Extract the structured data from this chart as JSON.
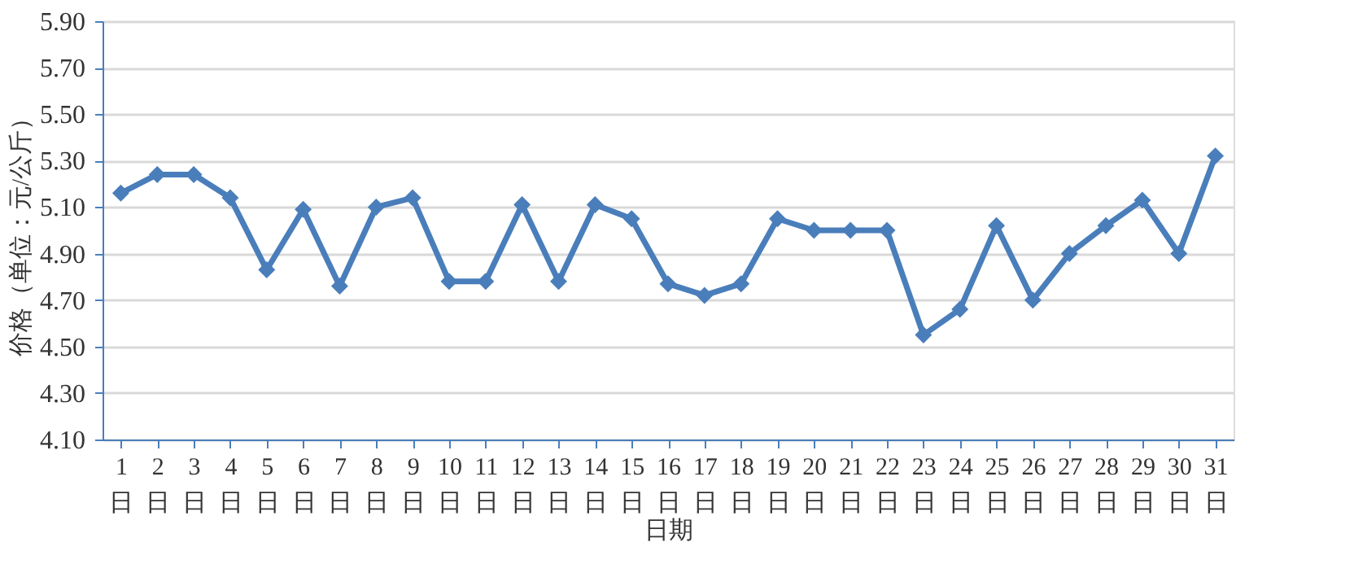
{
  "chart_data": {
    "type": "line",
    "xlabel": "日期",
    "ylabel": "价格（单位：元/公斤）",
    "categories": [
      "1日",
      "2日",
      "3日",
      "4日",
      "5日",
      "6日",
      "7日",
      "8日",
      "9日",
      "10日",
      "11日",
      "12日",
      "13日",
      "14日",
      "15日",
      "16日",
      "17日",
      "18日",
      "19日",
      "20日",
      "21日",
      "22日",
      "23日",
      "24日",
      "25日",
      "26日",
      "27日",
      "28日",
      "29日",
      "30日",
      "31日"
    ],
    "series": [
      {
        "color": "#4a7ebb",
        "values": [
          5.16,
          5.24,
          5.24,
          5.14,
          4.83,
          5.09,
          4.76,
          5.1,
          5.14,
          4.78,
          4.78,
          5.11,
          4.78,
          5.11,
          5.05,
          4.77,
          4.72,
          4.77,
          5.05,
          5.0,
          5.0,
          5.0,
          4.55,
          4.66,
          5.02,
          4.7,
          4.9,
          5.02,
          5.13,
          4.9,
          5.32
        ]
      }
    ],
    "ylim": [
      4.1,
      5.9
    ],
    "yticks": [
      {
        "value": 4.1,
        "label": "4.10"
      },
      {
        "value": 4.3,
        "label": "4.30"
      },
      {
        "value": 4.5,
        "label": "4.50"
      },
      {
        "value": 4.7,
        "label": "4.70"
      },
      {
        "value": 4.9,
        "label": "4.90"
      },
      {
        "value": 5.1,
        "label": "5.10"
      },
      {
        "value": 5.3,
        "label": "5.30"
      },
      {
        "value": 5.5,
        "label": "5.50"
      },
      {
        "value": 5.7,
        "label": "5.70"
      },
      {
        "value": 5.9,
        "label": "5.90"
      }
    ],
    "grid": "y",
    "marker": "diamond",
    "line_style": "solid"
  }
}
